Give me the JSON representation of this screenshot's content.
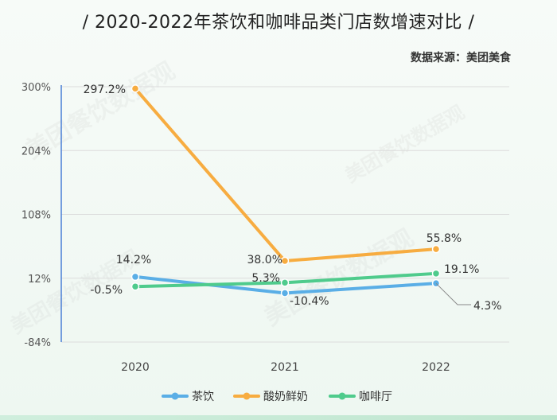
{
  "title": "/ 2020-2022年茶饮和咖啡品类门店数增速对比 /",
  "source": "数据来源：美团美食",
  "watermark": "美团餐饮数据观",
  "chart_data": {
    "type": "line",
    "categories": [
      "2020",
      "2021",
      "2022"
    ],
    "y_ticks": [
      "300%",
      "204%",
      "108%",
      "12%",
      "-84%"
    ],
    "ylim": [
      -84,
      300
    ],
    "grid": true,
    "legend_position": "bottom",
    "series": [
      {
        "name": "茶饮",
        "color": "#5aaee6",
        "values": [
          14.2,
          -10.4,
          4.3
        ],
        "labels": [
          "14.2%",
          "-10.4%",
          "4.3%"
        ]
      },
      {
        "name": "酸奶鲜奶",
        "color": "#f7ac40",
        "values": [
          297.2,
          38.0,
          55.8
        ],
        "labels": [
          "297.2%",
          "38.0%",
          "55.8%"
        ]
      },
      {
        "name": "咖啡厅",
        "color": "#4fcb8c",
        "values": [
          -0.5,
          5.3,
          19.1
        ],
        "labels": [
          "-0.5%",
          "5.3%",
          "19.1%"
        ]
      }
    ]
  }
}
